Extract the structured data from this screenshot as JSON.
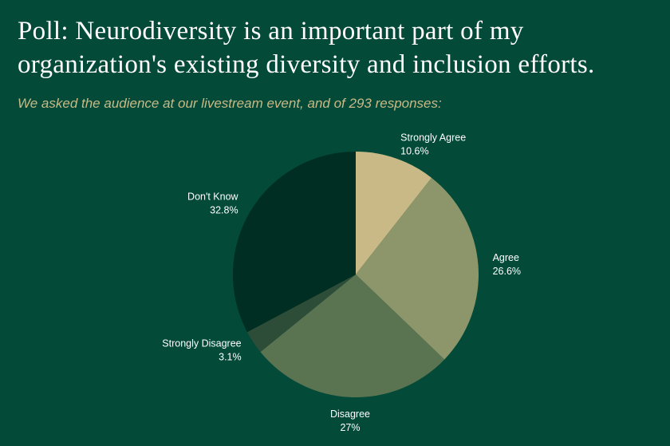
{
  "chart_data": {
    "type": "pie",
    "title": "Poll: Neurodiversity is an important part of my organization's existing diversity and inclusion efforts.",
    "subtitle": "We asked the audience at our livestream event, and of 293 responses:",
    "categories": [
      "Strongly Agree",
      "Agree",
      "Disagree",
      "Strongly Disagree",
      "Don't Know"
    ],
    "values": [
      10.6,
      26.6,
      27,
      3.1,
      32.8
    ],
    "value_labels": [
      "10.6%",
      "26.6%",
      "27%",
      "3.1%",
      "32.8%"
    ],
    "colors": [
      "#c8b986",
      "#8d966a",
      "#5a7452",
      "#2e4d38",
      "#002e22"
    ]
  }
}
